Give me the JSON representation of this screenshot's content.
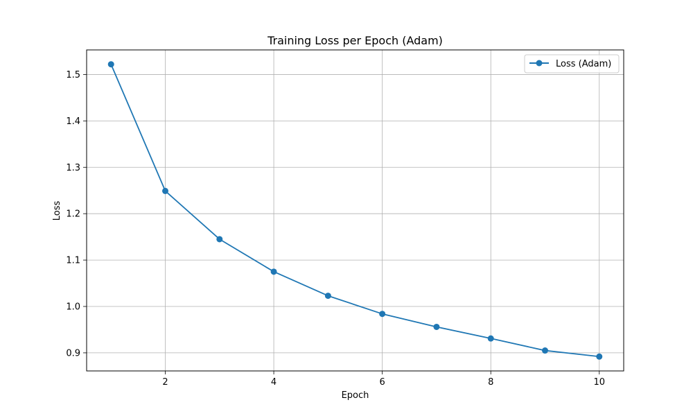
{
  "chart_data": {
    "type": "line",
    "title": "Training Loss per Epoch (Adam)",
    "xlabel": "Epoch",
    "ylabel": "Loss",
    "xlim": [
      0.55,
      10.45
    ],
    "ylim": [
      0.861,
      1.553
    ],
    "xticks": [
      2,
      4,
      6,
      8,
      10
    ],
    "yticks": [
      0.9,
      1.0,
      1.1,
      1.2,
      1.3,
      1.4,
      1.5
    ],
    "x_tick_labels": [
      "2",
      "4",
      "6",
      "8",
      "10"
    ],
    "y_tick_labels": [
      "0.9",
      "1.0",
      "1.1",
      "1.2",
      "1.3",
      "1.4",
      "1.5"
    ],
    "grid": true,
    "legend_position": "top-right",
    "series": [
      {
        "name": "Loss (Adam)",
        "color": "#1f77b4",
        "marker": "circle",
        "x": [
          1,
          2,
          3,
          4,
          5,
          6,
          7,
          8,
          9,
          10
        ],
        "y": [
          1.522,
          1.249,
          1.145,
          1.075,
          1.023,
          0.984,
          0.956,
          0.931,
          0.905,
          0.892
        ]
      }
    ]
  }
}
